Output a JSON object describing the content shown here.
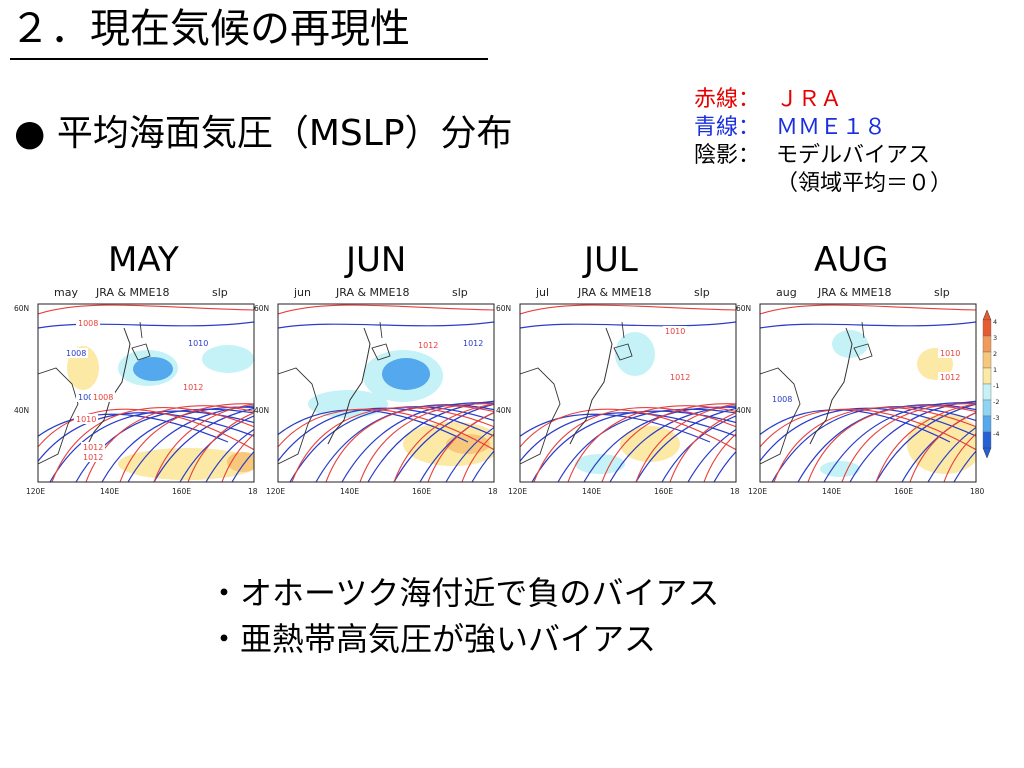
{
  "slide": {
    "title": "２．現在気候の再現性",
    "heading": "● 平均海面気圧（MSLP）分布"
  },
  "legend_note": {
    "red": {
      "key": "赤線：",
      "value": "ＪＲＡ",
      "color": "#e60000"
    },
    "blue": {
      "key": "青線：",
      "value": "ＭＭＥ１８",
      "color": "#1a2fe0"
    },
    "shade": {
      "key": "陰影：",
      "value": "モデルバイアス",
      "note": "（領域平均＝０）"
    }
  },
  "colors": {
    "jra_line": "#e8403c",
    "mme_line": "#2a3cc8",
    "bias_pos_1": "#fce9a6",
    "bias_pos_2": "#f7c77c",
    "bias_pos_3": "#f29a5a",
    "bias_pos_4": "#e85a30",
    "bias_neg_1": "#c5f2f6",
    "bias_neg_2": "#8fd5f3",
    "bias_neg_3": "#54a8ee",
    "bias_neg_4": "#2460d8"
  },
  "panels": [
    {
      "month_label": "MAY",
      "subtitle_month": "may",
      "subtitle_center": "JRA & MME18",
      "subtitle_var": "slp",
      "contour_labels": [
        "1008",
        "1008",
        "1008",
        "1008",
        "1010",
        "1010",
        "1012",
        "1012",
        "1012"
      ]
    },
    {
      "month_label": "JUN",
      "subtitle_month": "jun",
      "subtitle_center": "JRA & MME18",
      "subtitle_var": "slp",
      "contour_labels": [
        "1012",
        "1012"
      ]
    },
    {
      "month_label": "JUL",
      "subtitle_month": "jul",
      "subtitle_center": "JRA & MME18",
      "subtitle_var": "slp",
      "contour_labels": [
        "1010",
        "1012"
      ]
    },
    {
      "month_label": "AUG",
      "subtitle_month": "aug",
      "subtitle_center": "JRA & MME18",
      "subtitle_var": "slp",
      "contour_labels": [
        "1010",
        "1012",
        "1008"
      ]
    }
  ],
  "axis": {
    "lat_ticks": [
      "60N",
      "40N"
    ],
    "lon_ticks": [
      "120E",
      "140E",
      "160E",
      "18"
    ],
    "lon_ticks_last": [
      "120E",
      "140E",
      "160E",
      "180"
    ]
  },
  "colorbar": {
    "labels": [
      "4",
      "3",
      "2",
      "1",
      "-1",
      "-2",
      "-3",
      "-4"
    ]
  },
  "conclusions": [
    "・オホーツク海付近で負のバイアス",
    "・亜熱帯高気圧が強いバイアス"
  ]
}
